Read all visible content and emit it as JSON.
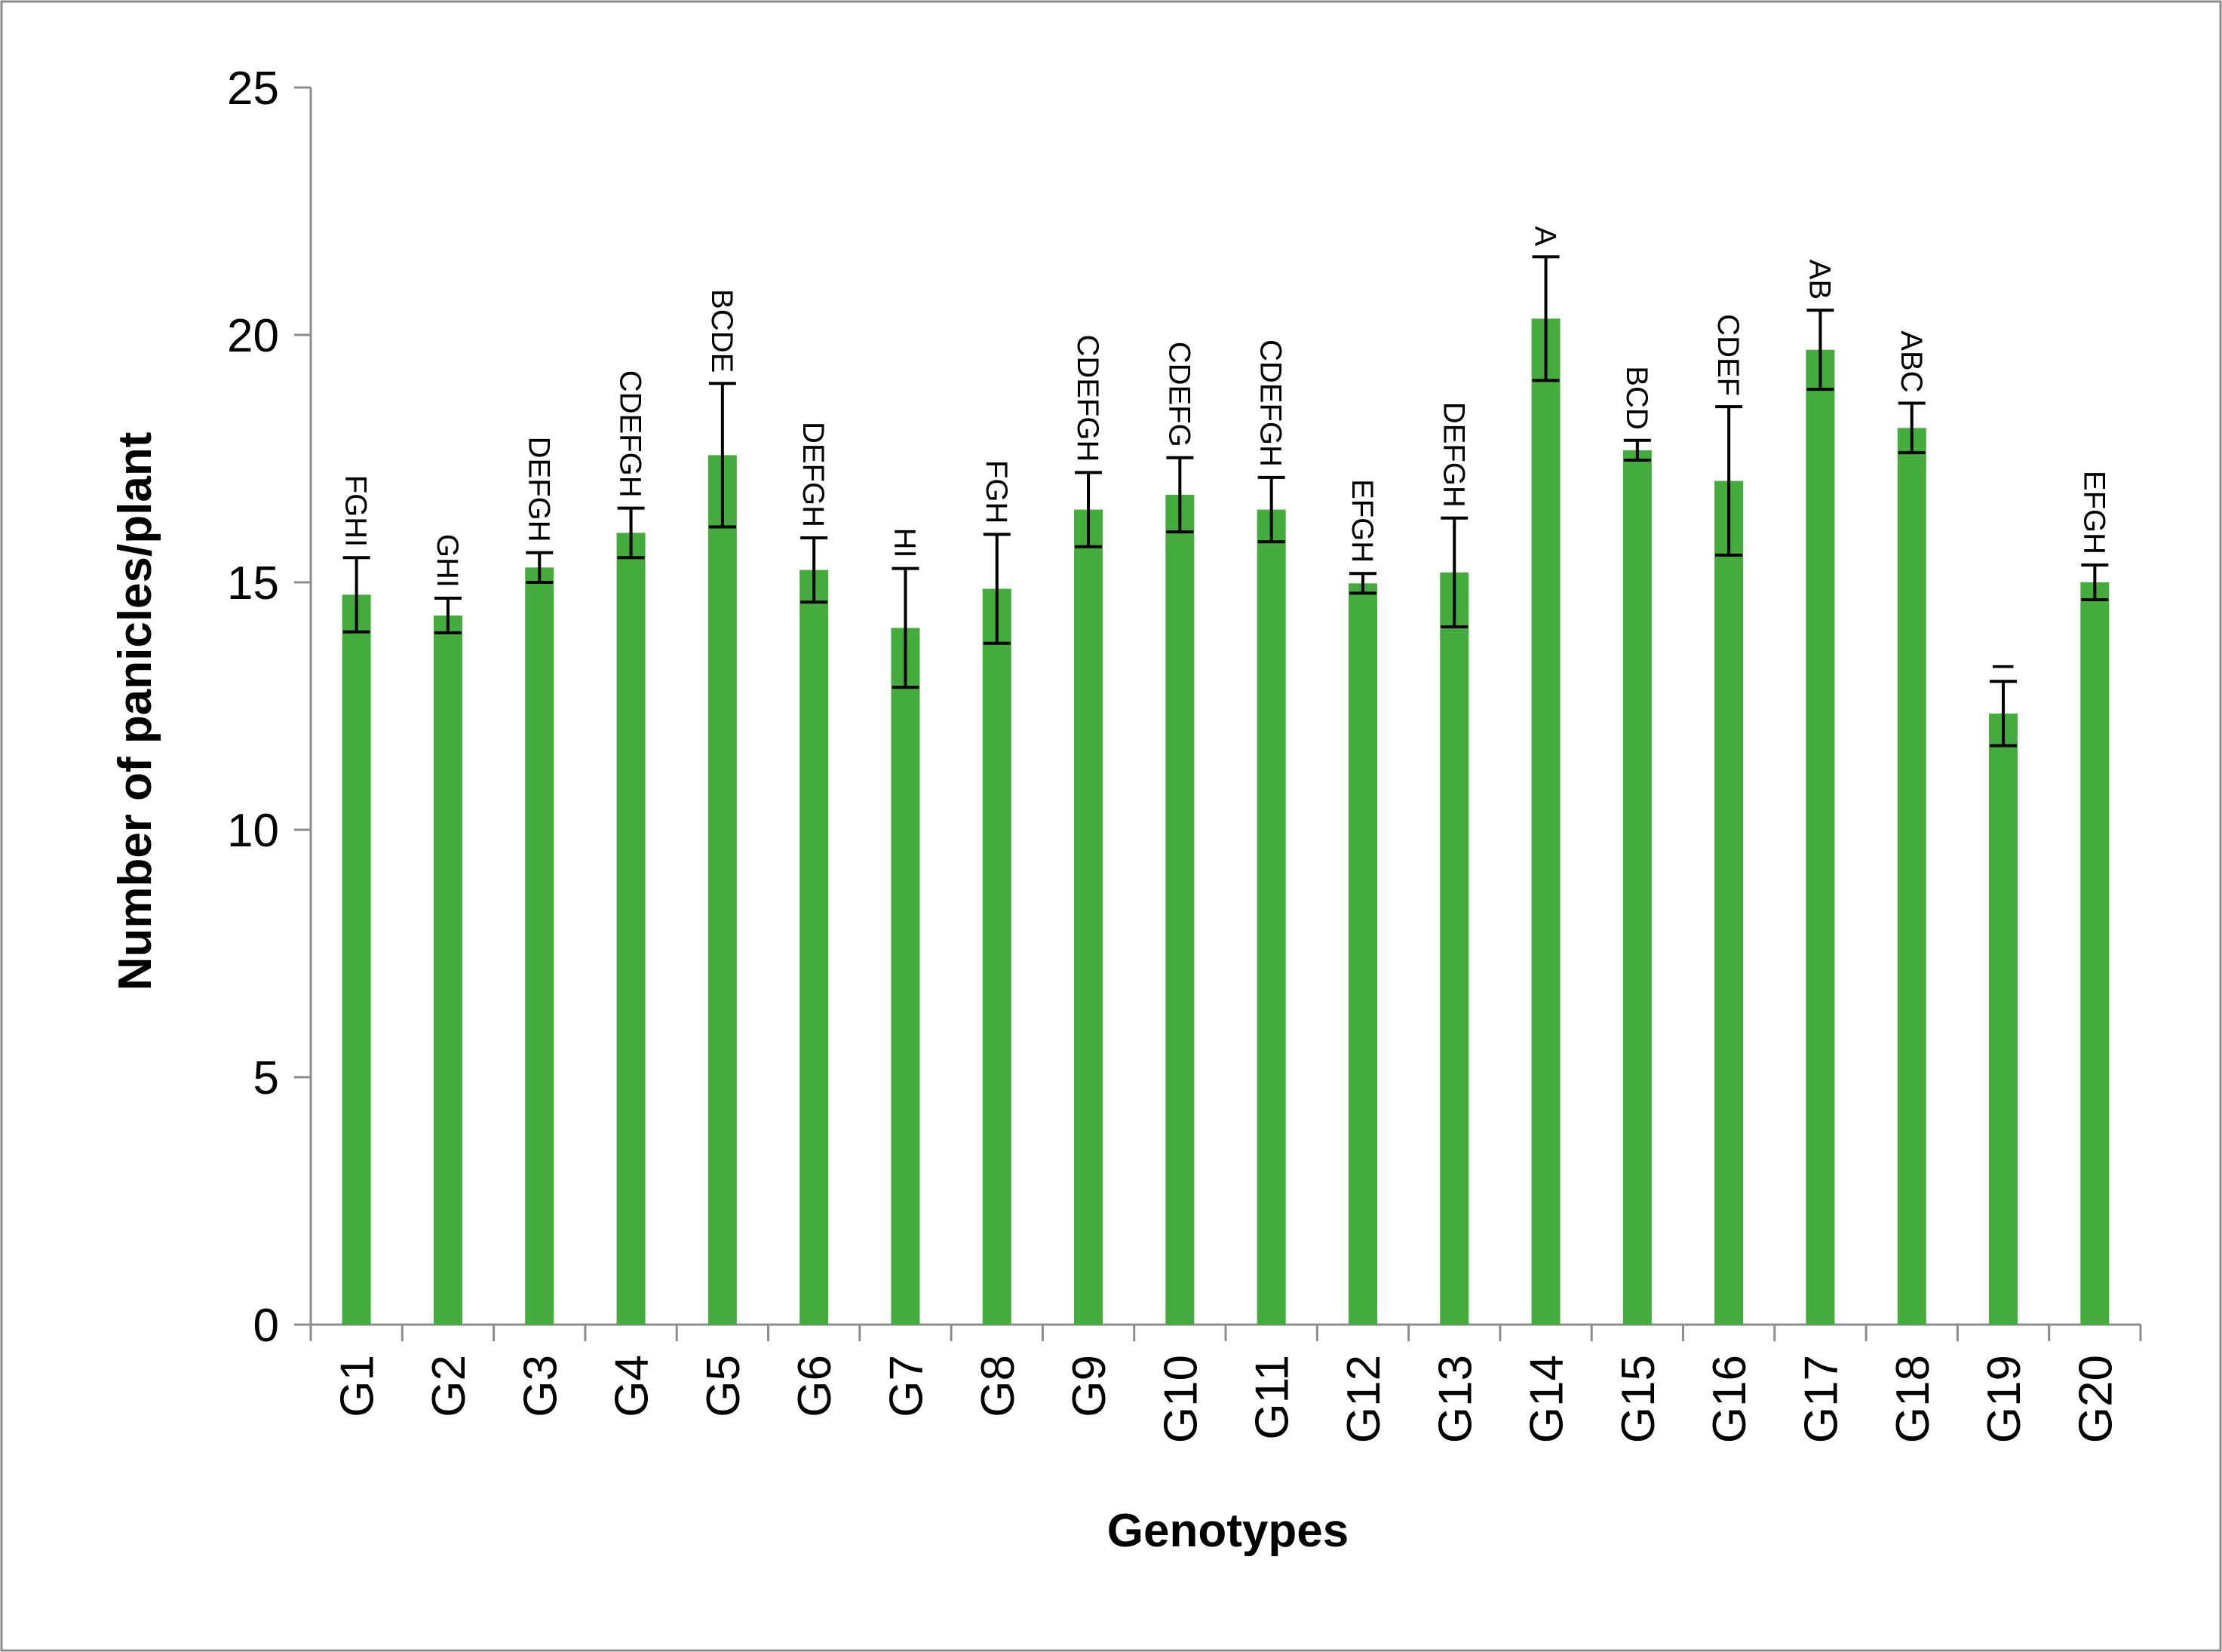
{
  "chart_data": {
    "type": "bar",
    "title": "",
    "xlabel": "Genotypes",
    "ylabel": "Number of panicles/plant",
    "ylim": [
      0,
      25
    ],
    "yticks": [
      0,
      5,
      10,
      15,
      20,
      25
    ],
    "grid": false,
    "legend": "none",
    "bar_color": "#44ac3c",
    "categories": [
      "G1",
      "G2",
      "G3",
      "G4",
      "G5",
      "G6",
      "G7",
      "G8",
      "G9",
      "G10",
      "G11",
      "G12",
      "G13",
      "G14",
      "G15",
      "G16",
      "G17",
      "G18",
      "G19",
      "G20"
    ],
    "values": [
      14.75,
      14.33,
      15.3,
      16.0,
      17.57,
      15.25,
      14.08,
      14.87,
      16.47,
      16.77,
      16.47,
      14.98,
      15.2,
      20.33,
      17.67,
      17.05,
      19.7,
      18.12,
      12.35,
      15.0
    ],
    "errors": [
      0.75,
      0.35,
      0.3,
      0.5,
      1.45,
      0.65,
      1.2,
      1.1,
      0.75,
      0.75,
      0.65,
      0.2,
      1.1,
      1.25,
      0.2,
      1.5,
      0.8,
      0.5,
      0.65,
      0.35
    ],
    "significance_letters": [
      "FGHI",
      "GHI",
      "DEFGH",
      "CDEFGH",
      "BCDE",
      "DEFGH",
      "HI",
      "FGH",
      "CDEFGH",
      "CDEFG",
      "CDEFGH",
      "EFGH",
      "DEFGH",
      "A",
      "BCD",
      "CDEF",
      "AB",
      "ABC",
      "I",
      "EFGH"
    ]
  }
}
